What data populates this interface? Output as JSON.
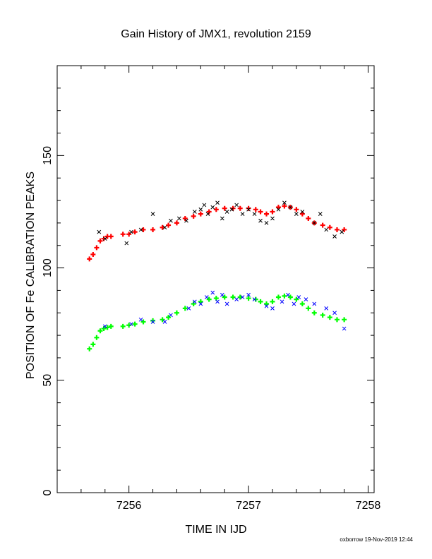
{
  "footer": "oxborrow 19-Nov-2019 12:44",
  "chart_data": {
    "type": "scatter",
    "title": "Gain History of JMX1, revolution 2159",
    "xlabel": "TIME IN IJD",
    "ylabel": "POSITION OF Fe CALIBRATION PEAKS",
    "xlim": [
      7255.4,
      7258.05
    ],
    "ylim": [
      0,
      190
    ],
    "x_ticks": [
      "7256",
      "7257",
      "7258"
    ],
    "y_ticks": [
      "0",
      "50",
      "100",
      "150"
    ],
    "grid": false,
    "colors": {
      "upper_fit": "#ff0000",
      "upper_raw": "#000000",
      "lower_fit": "#00ff00",
      "lower_raw": "#0000ff"
    },
    "series": [
      {
        "color_key": "upper_fit",
        "marker": "+",
        "x": [
          7255.67,
          7255.7,
          7255.73,
          7255.76,
          7255.79,
          7255.82,
          7255.85,
          7255.95,
          7256.0,
          7256.05,
          7256.12,
          7256.2,
          7256.28,
          7256.33,
          7256.4,
          7256.47,
          7256.54,
          7256.6,
          7256.67,
          7256.73,
          7256.8,
          7256.87,
          7256.93,
          7257.0,
          7257.06,
          7257.1,
          7257.15,
          7257.2,
          7257.25,
          7257.3,
          7257.35,
          7257.4,
          7257.45,
          7257.5,
          7257.55,
          7257.62,
          7257.68,
          7257.74,
          7257.8
        ],
        "y": [
          104,
          106,
          109,
          112,
          113,
          114,
          114,
          115,
          115,
          116,
          117,
          117,
          118,
          119,
          120,
          122,
          123,
          124,
          125,
          126,
          126.5,
          126.5,
          126.5,
          126.5,
          126,
          125,
          124,
          125,
          127,
          127.5,
          127,
          126,
          124,
          122,
          120,
          119,
          118,
          117,
          117
        ]
      },
      {
        "color_key": "upper_raw",
        "marker": "x",
        "x": [
          7255.75,
          7255.8,
          7255.98,
          7256.02,
          7256.1,
          7256.2,
          7256.3,
          7256.35,
          7256.42,
          7256.48,
          7256.55,
          7256.6,
          7256.63,
          7256.66,
          7256.7,
          7256.74,
          7256.78,
          7256.82,
          7256.86,
          7256.9,
          7256.95,
          7257.0,
          7257.05,
          7257.1,
          7257.15,
          7257.2,
          7257.25,
          7257.3,
          7257.35,
          7257.4,
          7257.45,
          7257.55,
          7257.6,
          7257.65,
          7257.72,
          7257.78
        ],
        "y": [
          116,
          113,
          111,
          116,
          117,
          124,
          118,
          121,
          122,
          121,
          125,
          126,
          128,
          124,
          127,
          129,
          122,
          125,
          126,
          128,
          124,
          126,
          124,
          121,
          120,
          122,
          126,
          129,
          127,
          124,
          125,
          120,
          124,
          117,
          114,
          116
        ]
      },
      {
        "color_key": "lower_fit",
        "marker": "+",
        "x": [
          7255.67,
          7255.7,
          7255.73,
          7255.76,
          7255.79,
          7255.82,
          7255.85,
          7255.95,
          7256.0,
          7256.05,
          7256.12,
          7256.2,
          7256.28,
          7256.33,
          7256.4,
          7256.47,
          7256.54,
          7256.6,
          7256.67,
          7256.73,
          7256.8,
          7256.87,
          7256.93,
          7257.0,
          7257.06,
          7257.1,
          7257.15,
          7257.2,
          7257.25,
          7257.3,
          7257.35,
          7257.4,
          7257.45,
          7257.5,
          7257.55,
          7257.62,
          7257.68,
          7257.74,
          7257.8
        ],
        "y": [
          64,
          66,
          69,
          72,
          73,
          73.5,
          74,
          74,
          74.5,
          75,
          76,
          76.5,
          77,
          78,
          80,
          82,
          84,
          85,
          86,
          86.5,
          87,
          87,
          87,
          86.5,
          86,
          85,
          84,
          85,
          87,
          87.5,
          87,
          86,
          84,
          82,
          80,
          79,
          78,
          77,
          77
        ]
      },
      {
        "color_key": "lower_raw",
        "marker": "x",
        "x": [
          7255.8,
          7256.02,
          7256.1,
          7256.2,
          7256.3,
          7256.35,
          7256.5,
          7256.55,
          7256.6,
          7256.65,
          7256.7,
          7256.74,
          7256.78,
          7256.82,
          7256.9,
          7256.95,
          7257.0,
          7257.05,
          7257.15,
          7257.2,
          7257.28,
          7257.33,
          7257.38,
          7257.42,
          7257.48,
          7257.55,
          7257.65,
          7257.72,
          7257.8
        ],
        "y": [
          74,
          75,
          77,
          76,
          76,
          79,
          82,
          85,
          84,
          87,
          89,
          85,
          88,
          84,
          86,
          87,
          88,
          86,
          83,
          82,
          85,
          88,
          84,
          87,
          86,
          84,
          82,
          80,
          73
        ]
      }
    ]
  }
}
